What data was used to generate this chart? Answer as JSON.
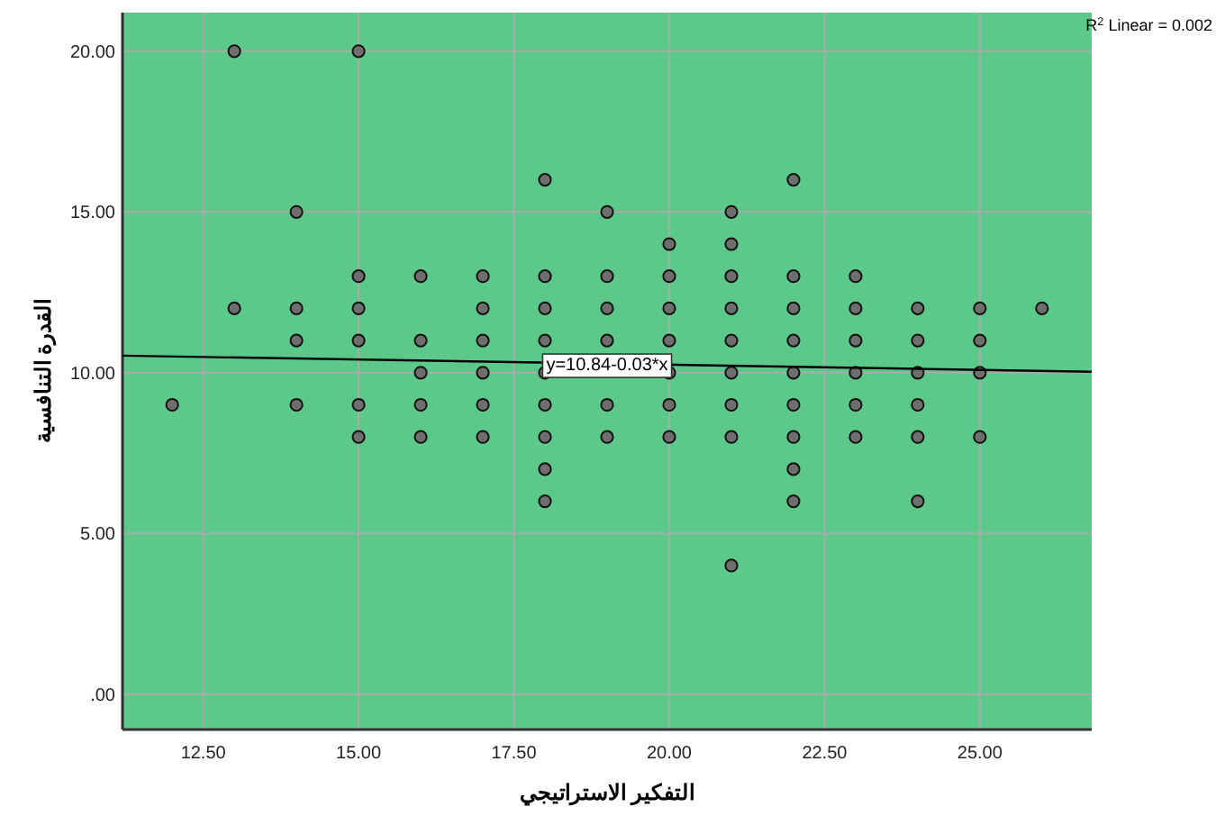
{
  "chart_data": {
    "type": "scatter",
    "xlabel": "التفكير الاستراتيجي",
    "ylabel": "القدرة التنافسية",
    "xlim": [
      11.2,
      26.8
    ],
    "ylim": [
      -1.1,
      21.2
    ],
    "xticks": [
      {
        "value": 12.5,
        "label": "12.50"
      },
      {
        "value": 15,
        "label": "15.00"
      },
      {
        "value": 17.5,
        "label": "17.50"
      },
      {
        "value": 20,
        "label": "20.00"
      },
      {
        "value": 22.5,
        "label": "22.50"
      },
      {
        "value": 25,
        "label": "25.00"
      }
    ],
    "yticks": [
      {
        "value": 0,
        "label": ".00"
      },
      {
        "value": 5,
        "label": "5.00"
      },
      {
        "value": 10,
        "label": "10.00"
      },
      {
        "value": 15,
        "label": "15.00"
      },
      {
        "value": 20,
        "label": "20.00"
      }
    ],
    "grid": true,
    "series": [
      {
        "color": "#6e6e6e",
        "marker": "circle",
        "x": [
          12,
          13,
          13,
          14,
          14,
          14,
          14,
          15,
          15,
          15,
          15,
          15,
          15,
          16,
          16,
          16,
          16,
          16,
          17,
          17,
          17,
          17,
          17,
          17,
          18,
          18,
          18,
          18,
          18,
          18,
          18,
          18,
          18,
          19,
          19,
          19,
          19,
          19,
          19,
          20,
          20,
          20,
          20,
          20,
          20,
          20,
          21,
          21,
          21,
          21,
          21,
          21,
          21,
          21,
          21,
          22,
          22,
          22,
          22,
          22,
          22,
          22,
          22,
          22,
          23,
          23,
          23,
          23,
          23,
          23,
          24,
          24,
          24,
          24,
          24,
          24,
          25,
          25,
          25,
          25,
          26
        ],
        "values": [
          9,
          20,
          12,
          15,
          12,
          11,
          9,
          20,
          13,
          12,
          11,
          9,
          8,
          13,
          11,
          10,
          9,
          8,
          13,
          12,
          11,
          10,
          9,
          8,
          16,
          13,
          12,
          11,
          10,
          9,
          8,
          7,
          6,
          15,
          13,
          12,
          11,
          9,
          8,
          14,
          13,
          12,
          11,
          10,
          9,
          8,
          15,
          14,
          13,
          12,
          11,
          10,
          9,
          8,
          4,
          16,
          13,
          12,
          11,
          10,
          9,
          8,
          7,
          6,
          13,
          12,
          11,
          10,
          9,
          8,
          12,
          11,
          10,
          9,
          8,
          6,
          12,
          11,
          10,
          8,
          12
        ]
      },
      {
        "type": "line",
        "color": "#000000",
        "x": [
          11.2,
          26.8
        ],
        "values": [
          10.53,
          10.03
        ]
      }
    ],
    "annotations": [
      {
        "text": "y=10.84-0.03*x",
        "x": 19,
        "y": 10.3
      },
      "R$^{2}$ Linear = 0.002"
    ]
  }
}
